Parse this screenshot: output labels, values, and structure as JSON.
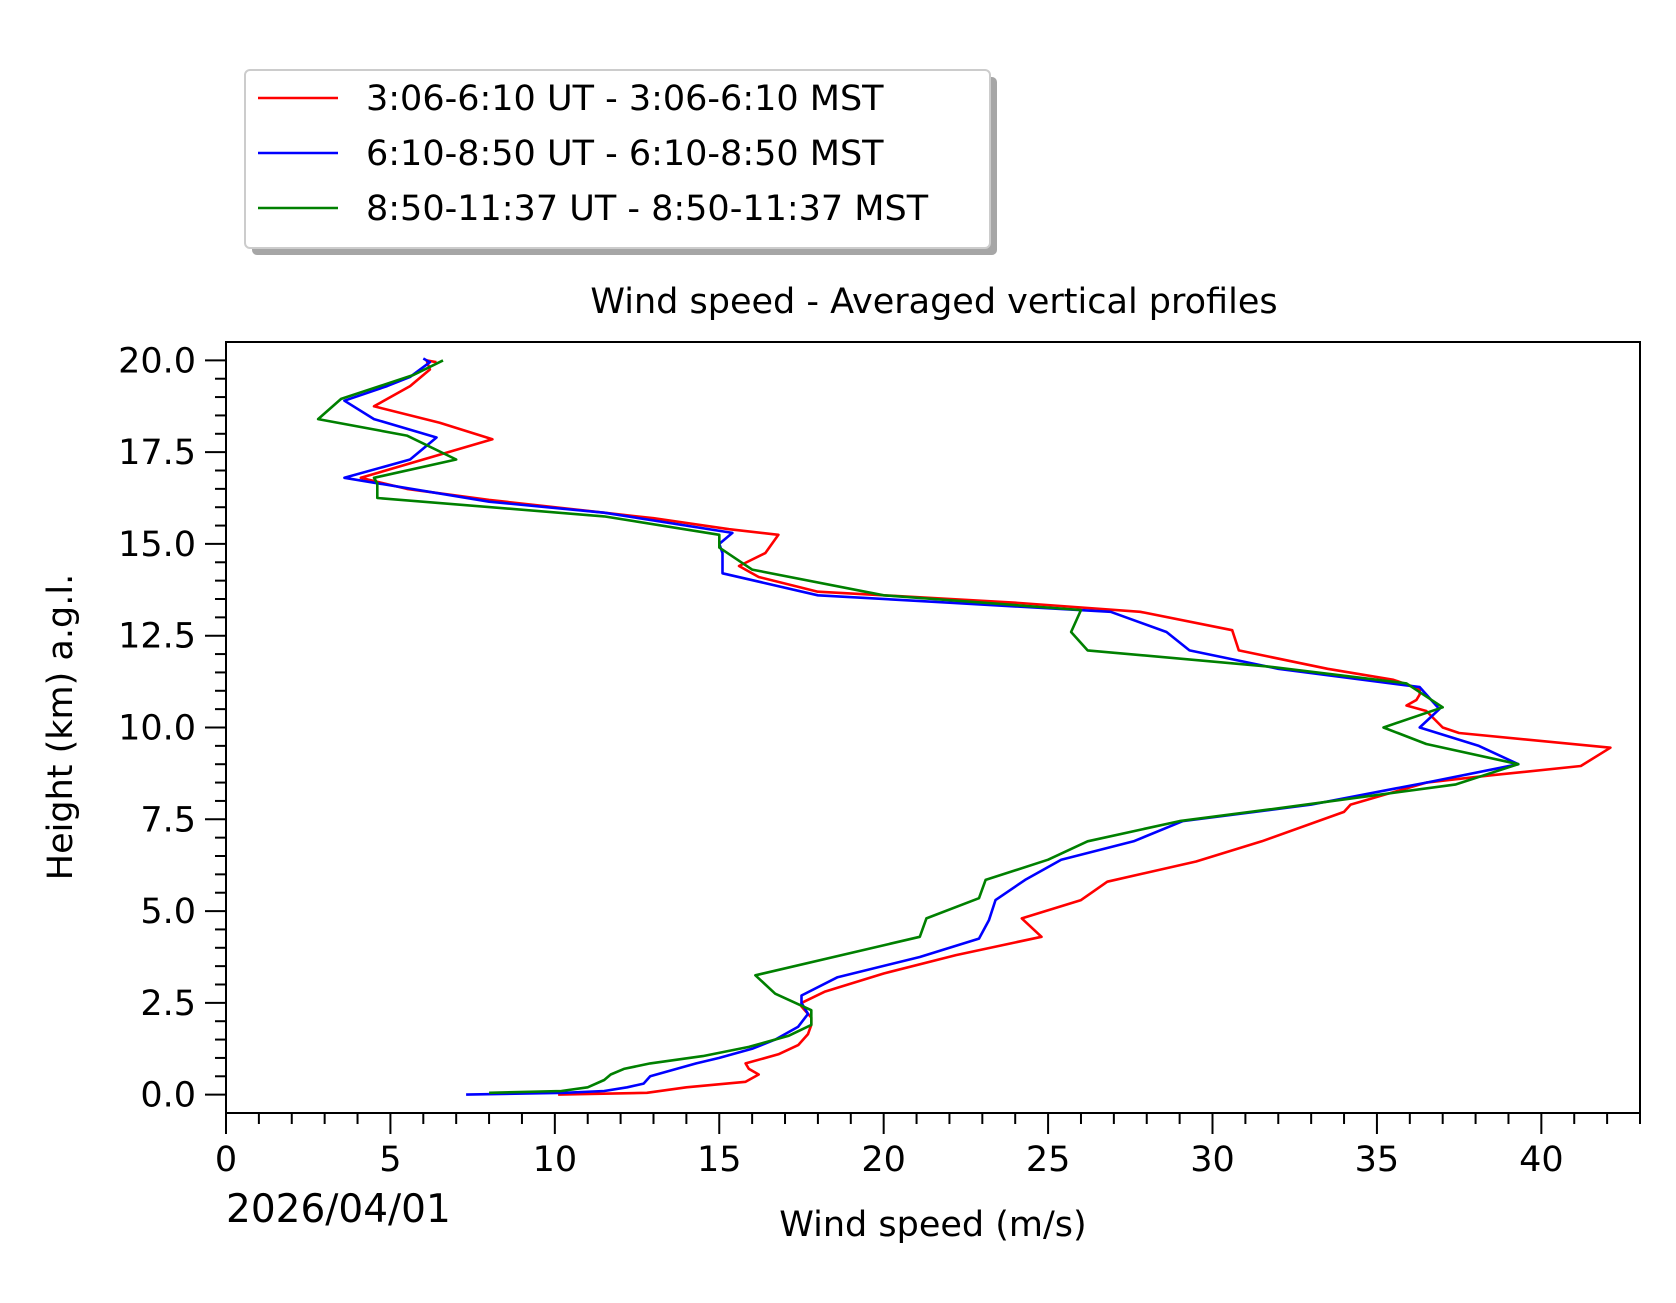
{
  "chart_data": {
    "type": "line",
    "title": "Wind speed - Averaged vertical profiles",
    "xlabel": "Wind speed (m/s)",
    "ylabel": "Height (km) a.g.l.",
    "date_label": "2026/04/01",
    "xlim": [
      0,
      43
    ],
    "ylim": [
      -0.5,
      20.5
    ],
    "x_ticks": [
      0,
      5,
      10,
      15,
      20,
      25,
      30,
      35,
      40
    ],
    "y_ticks": [
      0.0,
      2.5,
      5.0,
      7.5,
      10.0,
      12.5,
      15.0,
      17.5,
      20.0
    ],
    "x_tick_labels": [
      "0",
      "5",
      "10",
      "15",
      "20",
      "25",
      "30",
      "35",
      "40"
    ],
    "y_tick_labels": [
      "0.0",
      "2.5",
      "5.0",
      "7.5",
      "10.0",
      "12.5",
      "15.0",
      "17.5",
      "20.0"
    ],
    "grid": false,
    "legend_position": "above-left",
    "series": [
      {
        "name": "3:06-6:10 UT - 3:06-6:10 MST",
        "color": "#ff0000",
        "points": [
          [
            10.1,
            0.0
          ],
          [
            12.8,
            0.05
          ],
          [
            14.0,
            0.2
          ],
          [
            15.8,
            0.35
          ],
          [
            16.2,
            0.55
          ],
          [
            15.9,
            0.7
          ],
          [
            15.8,
            0.85
          ],
          [
            16.8,
            1.1
          ],
          [
            17.4,
            1.35
          ],
          [
            17.7,
            1.65
          ],
          [
            17.8,
            1.9
          ],
          [
            17.8,
            2.1
          ],
          [
            17.6,
            2.3
          ],
          [
            17.5,
            2.4
          ],
          [
            17.5,
            2.5
          ],
          [
            18.2,
            2.8
          ],
          [
            20.0,
            3.3
          ],
          [
            22.2,
            3.8
          ],
          [
            24.8,
            4.3
          ],
          [
            24.2,
            4.8
          ],
          [
            26.0,
            5.3
          ],
          [
            26.8,
            5.8
          ],
          [
            29.5,
            6.35
          ],
          [
            31.5,
            6.9
          ],
          [
            34.0,
            7.7
          ],
          [
            34.2,
            7.9
          ],
          [
            36.5,
            8.5
          ],
          [
            38.5,
            8.7
          ],
          [
            41.2,
            8.95
          ],
          [
            42.1,
            9.45
          ],
          [
            37.5,
            9.85
          ],
          [
            37.0,
            10.0
          ],
          [
            36.5,
            10.45
          ],
          [
            35.9,
            10.6
          ],
          [
            36.2,
            10.75
          ],
          [
            36.3,
            10.9
          ],
          [
            36.3,
            11.05
          ],
          [
            35.5,
            11.3
          ],
          [
            33.5,
            11.6
          ],
          [
            30.8,
            12.1
          ],
          [
            30.6,
            12.65
          ],
          [
            27.8,
            13.15
          ],
          [
            24.0,
            13.4
          ],
          [
            20.0,
            13.6
          ],
          [
            18.0,
            13.7
          ],
          [
            16.2,
            14.1
          ],
          [
            15.6,
            14.4
          ],
          [
            16.4,
            14.75
          ],
          [
            16.8,
            15.25
          ],
          [
            15.3,
            15.4
          ],
          [
            13.0,
            15.7
          ],
          [
            11.5,
            15.85
          ],
          [
            8.0,
            16.2
          ],
          [
            5.5,
            16.5
          ],
          [
            4.1,
            16.8
          ],
          [
            8.1,
            17.85
          ],
          [
            6.5,
            18.3
          ],
          [
            4.5,
            18.75
          ],
          [
            5.6,
            19.3
          ],
          [
            6.2,
            19.75
          ],
          [
            6.1,
            20.0
          ],
          [
            6.4,
            19.95
          ]
        ]
      },
      {
        "name": "6:10-8:50 UT - 6:10-8:50 MST",
        "color": "#0000ff",
        "points": [
          [
            7.3,
            0.0
          ],
          [
            10.3,
            0.05
          ],
          [
            11.5,
            0.1
          ],
          [
            12.2,
            0.2
          ],
          [
            12.7,
            0.3
          ],
          [
            12.9,
            0.5
          ],
          [
            13.7,
            0.7
          ],
          [
            14.3,
            0.85
          ],
          [
            15.0,
            1.0
          ],
          [
            16.0,
            1.25
          ],
          [
            16.7,
            1.5
          ],
          [
            17.4,
            1.85
          ],
          [
            17.7,
            2.2
          ],
          [
            17.5,
            2.5
          ],
          [
            17.5,
            2.7
          ],
          [
            18.6,
            3.2
          ],
          [
            21.1,
            3.75
          ],
          [
            22.9,
            4.25
          ],
          [
            23.2,
            4.75
          ],
          [
            23.4,
            5.3
          ],
          [
            24.3,
            5.85
          ],
          [
            25.4,
            6.4
          ],
          [
            27.6,
            6.9
          ],
          [
            29.1,
            7.45
          ],
          [
            33.0,
            7.9
          ],
          [
            36.5,
            8.5
          ],
          [
            39.3,
            9.0
          ],
          [
            38.1,
            9.5
          ],
          [
            36.3,
            10.0
          ],
          [
            36.9,
            10.5
          ],
          [
            36.3,
            11.1
          ],
          [
            32.0,
            11.6
          ],
          [
            29.3,
            12.1
          ],
          [
            28.6,
            12.6
          ],
          [
            26.9,
            13.15
          ],
          [
            22.0,
            13.4
          ],
          [
            18.0,
            13.6
          ],
          [
            15.1,
            14.2
          ],
          [
            15.1,
            14.75
          ],
          [
            15.0,
            15.0
          ],
          [
            15.4,
            15.3
          ],
          [
            11.5,
            15.85
          ],
          [
            8.0,
            16.15
          ],
          [
            3.6,
            16.8
          ],
          [
            5.6,
            17.3
          ],
          [
            6.4,
            17.9
          ],
          [
            4.5,
            18.4
          ],
          [
            3.6,
            18.9
          ],
          [
            4.9,
            19.3
          ],
          [
            5.6,
            19.55
          ],
          [
            6.2,
            19.95
          ],
          [
            6.0,
            20.05
          ]
        ]
      },
      {
        "name": "8:50-11:37 UT - 8:50-11:37 MST",
        "color": "#008000",
        "points": [
          [
            8.0,
            0.05
          ],
          [
            10.2,
            0.1
          ],
          [
            11.0,
            0.2
          ],
          [
            11.5,
            0.4
          ],
          [
            11.7,
            0.55
          ],
          [
            12.1,
            0.7
          ],
          [
            12.9,
            0.85
          ],
          [
            14.5,
            1.05
          ],
          [
            15.9,
            1.3
          ],
          [
            17.1,
            1.6
          ],
          [
            17.8,
            1.9
          ],
          [
            17.8,
            2.3
          ],
          [
            16.7,
            2.75
          ],
          [
            16.1,
            3.25
          ],
          [
            21.1,
            4.3
          ],
          [
            21.3,
            4.8
          ],
          [
            22.9,
            5.35
          ],
          [
            23.1,
            5.85
          ],
          [
            25.0,
            6.4
          ],
          [
            26.2,
            6.9
          ],
          [
            29.0,
            7.45
          ],
          [
            32.0,
            7.8
          ],
          [
            37.4,
            8.45
          ],
          [
            39.3,
            9.0
          ],
          [
            36.5,
            9.55
          ],
          [
            35.2,
            10.0
          ],
          [
            37.0,
            10.55
          ],
          [
            35.9,
            11.2
          ],
          [
            31.8,
            11.65
          ],
          [
            26.2,
            12.1
          ],
          [
            25.7,
            12.6
          ],
          [
            26.0,
            13.2
          ],
          [
            20.0,
            13.6
          ],
          [
            16.0,
            14.3
          ],
          [
            15.0,
            14.9
          ],
          [
            15.0,
            15.25
          ],
          [
            11.5,
            15.75
          ],
          [
            4.6,
            16.25
          ],
          [
            4.6,
            16.65
          ],
          [
            4.5,
            16.8
          ],
          [
            7.0,
            17.3
          ],
          [
            5.5,
            17.95
          ],
          [
            2.8,
            18.4
          ],
          [
            3.5,
            18.95
          ],
          [
            5.7,
            19.6
          ],
          [
            6.6,
            20.0
          ]
        ]
      }
    ]
  }
}
